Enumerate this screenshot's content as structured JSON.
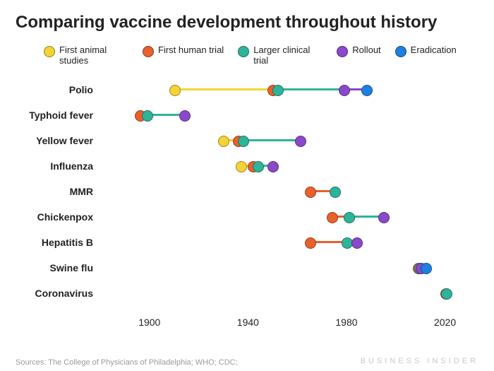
{
  "title": "Comparing vaccine development throughout history",
  "background_color": "#ffffff",
  "title_fontsize": 24,
  "label_fontsize": 14,
  "xaxis": {
    "min": 1880,
    "max": 2025,
    "ticks": [
      1900,
      1940,
      1980,
      2020
    ]
  },
  "stages": [
    {
      "key": "animal",
      "label": "First animal studies",
      "color": "#f5d235"
    },
    {
      "key": "human",
      "label": "First human trial",
      "color": "#e8602c"
    },
    {
      "key": "larger",
      "label": "Larger clinical trial",
      "color": "#2fb39a"
    },
    {
      "key": "rollout",
      "label": "Rollout",
      "color": "#8b48c9"
    },
    {
      "key": "eradication",
      "label": "Eradication",
      "color": "#1e7fe0"
    }
  ],
  "marker_radius": 7,
  "line_width": 3,
  "rows": [
    {
      "label": "Polio",
      "points": {
        "animal": 1910,
        "human": 1950,
        "larger": 1952,
        "rollout": 1979,
        "eradication": 1988
      }
    },
    {
      "label": "Typhoid fever",
      "points": {
        "human": 1896,
        "larger": 1899,
        "rollout": 1914
      }
    },
    {
      "label": "Yellow fever",
      "points": {
        "animal": 1930,
        "human": 1936,
        "larger": 1938,
        "rollout": 1961
      }
    },
    {
      "label": "Influenza",
      "points": {
        "animal": 1937,
        "human": 1942,
        "larger": 1944,
        "rollout": 1950
      }
    },
    {
      "label": "MMR",
      "points": {
        "human": 1965,
        "larger": 1975
      }
    },
    {
      "label": "Chickenpox",
      "points": {
        "human": 1974,
        "larger": 1981,
        "rollout": 1995
      }
    },
    {
      "label": "Hepatitis B",
      "points": {
        "human": 1965,
        "larger": 1980,
        "rollout": 1984
      }
    },
    {
      "label": "Swine flu",
      "points": {
        "human": 2009,
        "larger": 2009.5,
        "rollout": 2010,
        "eradication": 2012
      }
    },
    {
      "label": "Coronavirus",
      "points": {
        "human": 2020,
        "larger": 2020.5
      }
    }
  ],
  "row_spacing": 36,
  "sources_text": "Sources: The College of Physicians of Philadelphia; WHO; CDC;",
  "watermark_text": "BUSINESS INSIDER"
}
